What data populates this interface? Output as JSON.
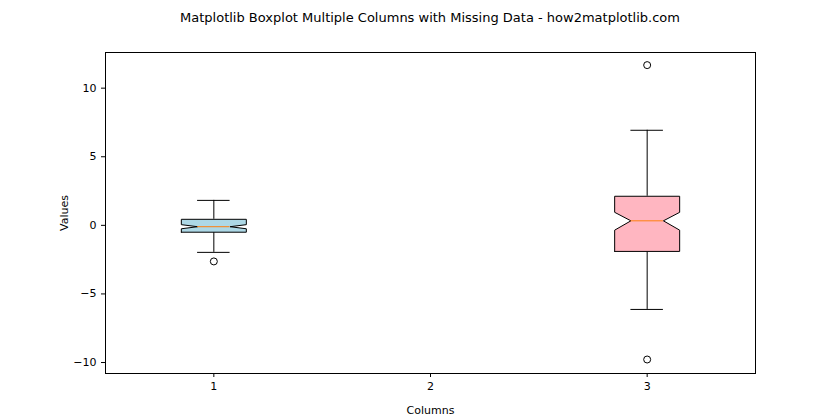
{
  "chart_data": {
    "type": "box",
    "title": "Matplotlib Boxplot Multiple Columns with Missing Data - how2matplotlib.com",
    "x_label": "Columns",
    "y_label": "Values",
    "categories": [
      "1",
      "2",
      "3"
    ],
    "x": [
      1,
      2,
      3
    ],
    "xlim": [
      0.5,
      3.5
    ],
    "xticks": [
      1,
      2,
      3
    ],
    "ylim": [
      -10.8,
      12.6
    ],
    "yticks": [
      {
        "value": -10,
        "label": "−10"
      },
      {
        "value": -5,
        "label": "−5"
      },
      0,
      5,
      10
    ],
    "colors": [
      "#add8e6",
      null,
      "#ffb6c1"
    ],
    "grid": false,
    "boxes": [
      {
        "whislo": -1.97,
        "q1": -0.5,
        "med": -0.1,
        "q3": 0.44,
        "whishi": 1.82,
        "notch": [
          -0.25,
          0.05
        ],
        "fliers": [
          -2.63
        ]
      },
      null,
      {
        "whislo": -6.13,
        "q1": -1.9,
        "med": 0.33,
        "q3": 2.12,
        "whishi": 6.93,
        "notch": [
          -0.35,
          0.95
        ],
        "fliers": [
          11.68,
          -9.78
        ]
      }
    ]
  }
}
